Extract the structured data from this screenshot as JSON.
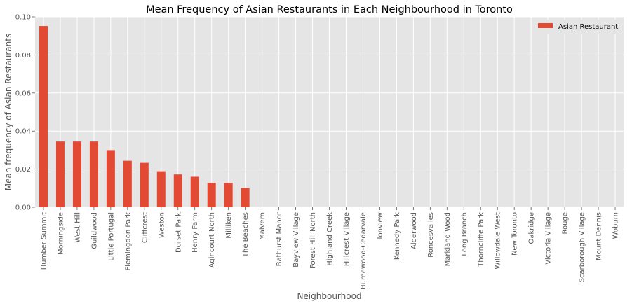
{
  "chart_data": {
    "type": "bar",
    "title": "Mean Frequency of Asian Restaurants in Each Neighbourhood in Toronto",
    "xlabel": "Neighbourhood",
    "ylabel": "Mean frequency of Asian Restaurants",
    "ylim": [
      0,
      0.1
    ],
    "yticks": [
      "0.00",
      "0.02",
      "0.04",
      "0.06",
      "0.08",
      "0.10"
    ],
    "grid": true,
    "legend_position": "top-right",
    "categories": [
      "Humber Summit",
      "Morningside",
      "West Hill",
      "Guildwood",
      "Little Portugal",
      "Flemingdon Park",
      "Cliffcrest",
      "Weston",
      "Dorset Park",
      "Henry Farm",
      "Agincourt North",
      "Milliken",
      "The Beaches",
      "Malvern",
      "Bathurst Manor",
      "Bayview Village",
      "Forest Hill North",
      "Highland Creek",
      "Hillcrest Village",
      "Humewood-Cedarvale",
      "Ionview",
      "Kennedy Park",
      "Alderwood",
      "Roncesvalles",
      "Markland Wood",
      "Long Branch",
      "Thorncliffe Park",
      "Willowdale West",
      "New Toronto",
      "Oakridge",
      "Victoria Village",
      "Rouge",
      "Scarborough Village",
      "Mount Dennis",
      "Woburn"
    ],
    "series": [
      {
        "name": "Asian Restaurant",
        "color": "#E24A33",
        "values": [
          0.0952,
          0.0345,
          0.0345,
          0.0345,
          0.03,
          0.0244,
          0.0233,
          0.0189,
          0.0172,
          0.016,
          0.0128,
          0.0128,
          0.0101,
          0,
          0,
          0,
          0,
          0,
          0,
          0,
          0,
          0,
          0,
          0,
          0,
          0,
          0,
          0,
          0,
          0,
          0,
          0,
          0,
          0,
          0
        ]
      }
    ]
  }
}
